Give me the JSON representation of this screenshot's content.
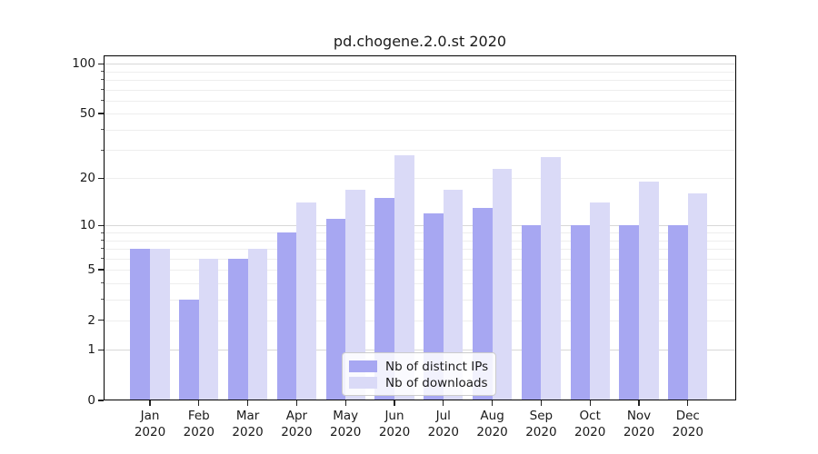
{
  "chart_data": {
    "type": "bar",
    "title": "pd.chogene.2.0.st 2020",
    "categories": [
      "Jan 2020",
      "Feb 2020",
      "Mar 2020",
      "Apr 2020",
      "May 2020",
      "Jun 2020",
      "Jul 2020",
      "Aug 2020",
      "Sep 2020",
      "Oct 2020",
      "Nov 2020",
      "Dec 2020"
    ],
    "x_tick_line1": [
      "Jan",
      "Feb",
      "Mar",
      "Apr",
      "May",
      "Jun",
      "Jul",
      "Aug",
      "Sep",
      "Oct",
      "Nov",
      "Dec"
    ],
    "x_tick_line2": [
      "2020",
      "2020",
      "2020",
      "2020",
      "2020",
      "2020",
      "2020",
      "2020",
      "2020",
      "2020",
      "2020",
      "2020"
    ],
    "series": [
      {
        "name": "Nb of distinct IPs",
        "color": "#a7a7f2",
        "values": [
          7,
          3,
          6,
          9,
          11,
          15,
          12,
          13,
          10,
          10,
          10,
          10
        ]
      },
      {
        "name": "Nb of downloads",
        "color": "#dadaf7",
        "values": [
          7,
          6,
          7,
          14,
          17,
          28,
          17,
          23,
          27,
          14,
          19,
          16
        ]
      }
    ],
    "xlabel": "",
    "ylabel": "",
    "yscale": "log(1+y)",
    "ylim": [
      0,
      113
    ],
    "y_tick_values": [
      0,
      1,
      2,
      5,
      10,
      20,
      50,
      100
    ],
    "y_tick_labels": [
      "0",
      "1",
      "2",
      "5",
      "10",
      "20",
      "50",
      "100"
    ],
    "grid": "horizontal",
    "grid_major_values": [
      1,
      10,
      100
    ],
    "grid_minor_values": [
      2,
      3,
      4,
      5,
      6,
      7,
      8,
      9,
      20,
      30,
      40,
      50,
      60,
      70,
      80,
      90
    ],
    "minor_tick_values": [
      3,
      4,
      6,
      7,
      8,
      9,
      30,
      40,
      60,
      70,
      80,
      90
    ],
    "legend_position": "lower center",
    "legend_labels": [
      "Nb of distinct IPs",
      "Nb of downloads"
    ]
  },
  "colors": {
    "background": "#ffffff",
    "bar_distinct_ips": "#a7a7f2",
    "bar_downloads": "#dadaf7",
    "grid_major": "#d8d8d8",
    "grid_minor": "#eeeeee",
    "spine": "#000000",
    "text": "#1a1a1a",
    "legend_border": "#cccccc"
  }
}
